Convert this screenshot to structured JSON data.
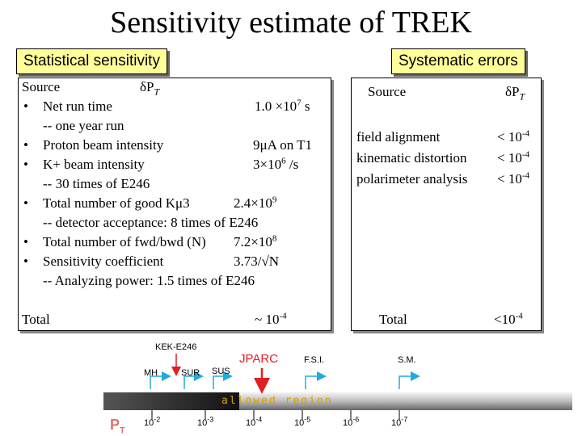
{
  "title": "Sensitivity estimate of TREK",
  "stat_label": "Statistical sensitivity",
  "sys_label": "Systematic errors",
  "stat": {
    "header_source": "Source",
    "header_dpt": "δP",
    "header_dpt_sub": "T",
    "items": [
      {
        "bullet": "•",
        "text": "Net run time",
        "value": "1.0 ×10",
        "value_sup": "7",
        "value_tail": " s"
      },
      {
        "bullet": "",
        "text": "-- one year run",
        "value": "",
        "value_sup": "",
        "value_tail": ""
      },
      {
        "bullet": "•",
        "text": "Proton beam intensity",
        "value": "9μA on T1",
        "value_sup": "",
        "value_tail": ""
      },
      {
        "bullet": "•",
        "text": "K+ beam intensity",
        "value": "3×10",
        "value_sup": "6",
        "value_tail": " /s"
      },
      {
        "bullet": "",
        "text": "-- 30 times of E246",
        "value": "",
        "value_sup": "",
        "value_tail": ""
      },
      {
        "bullet": "•",
        "text": "Total number of good Kμ3",
        "value": "2.4×10",
        "value_sup": "9",
        "value_tail": ""
      },
      {
        "bullet": "",
        "text": "-- detector acceptance: 8 times of E246",
        "value": "",
        "value_sup": "",
        "value_tail": ""
      },
      {
        "bullet": "•",
        "text": "Total number of fwd/bwd (N)",
        "value": "7.2×10",
        "value_sup": "8",
        "value_tail": ""
      },
      {
        "bullet": "•",
        "text": "Sensitivity coefficient",
        "value": "3.73/√N",
        "value_sup": "",
        "value_tail": ""
      },
      {
        "bullet": "",
        "text": "-- Analyzing power: 1.5 times of E246",
        "value": "",
        "value_sup": "",
        "value_tail": ""
      }
    ],
    "total_label": "Total",
    "total_value": "~ 10",
    "total_value_sup": "-4"
  },
  "sys": {
    "header_source": "Source",
    "header_dpt": "δP",
    "header_dpt_sub": "T",
    "rows": [
      {
        "name": "field alignment",
        "value": "< 10",
        "sup": "-4"
      },
      {
        "name": "kinematic distortion",
        "value": "< 10",
        "sup": "-4"
      },
      {
        "name": "polarimeter analysis",
        "value": "< 10",
        "sup": "-4"
      }
    ],
    "total_label": "Total",
    "total_value": "<10",
    "total_value_sup": "-4"
  },
  "graphic": {
    "kek_label": "KEK-E246",
    "jparc_label": "JPARC",
    "fsi_label": "F.S.I.",
    "sm_label": "S.M.",
    "mh_label": "MH",
    "sur_label": "SUR",
    "sus_label": "SUS",
    "bar_text": "allowed  region",
    "pt_label": "P",
    "pt_sub": "T",
    "ticks": [
      {
        "base": "10",
        "exp": "-2"
      },
      {
        "base": "10",
        "exp": "-3"
      },
      {
        "base": "10",
        "exp": "-4"
      },
      {
        "base": "10",
        "exp": "-5"
      },
      {
        "base": "10",
        "exp": "-6"
      },
      {
        "base": "10",
        "exp": "-7"
      }
    ],
    "colors": {
      "red": "#e02020",
      "cyan": "#22aadd",
      "bar_text": "#d4a000"
    }
  }
}
